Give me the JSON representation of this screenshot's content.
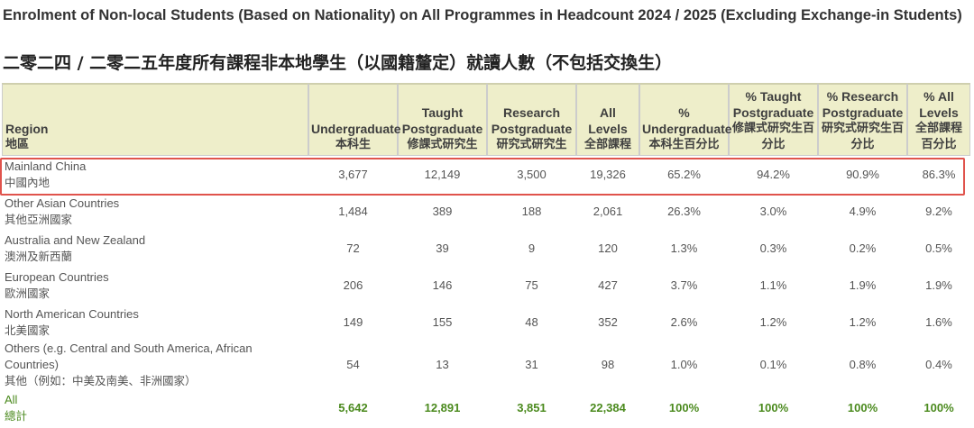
{
  "title_en": "Enrolment of Non-local Students (Based on Nationality) on All Programmes in Headcount 2024 / 2025 (Excluding Exchange-in Students)",
  "title_zh": "二零二四 / 二零二五年度所有課程非本地學生（以國籍釐定）就讀人數（不包括交換生）",
  "columns": [
    {
      "en": "Region",
      "zh": "地區"
    },
    {
      "en": "Undergraduate",
      "zh": "本科生"
    },
    {
      "en": "Taught Postgraduate",
      "zh": "修課式研究生"
    },
    {
      "en": "Research Postgraduate",
      "zh": "研究式研究生"
    },
    {
      "en": "All Levels",
      "zh": "全部課程"
    },
    {
      "en": "% Undergraduate",
      "zh": "本科生百分比"
    },
    {
      "en": "% Taught Postgraduate",
      "zh": "修課式研究生百分比"
    },
    {
      "en": "% Research Postgraduate",
      "zh": "研究式研究生百分比"
    },
    {
      "en": "% All Levels",
      "zh": "全部課程百分比"
    }
  ],
  "rows": [
    {
      "region_en": "Mainland China",
      "region_zh": "中國內地",
      "values": [
        "3,677",
        "12,149",
        "3,500",
        "19,326",
        "65.2%",
        "94.2%",
        "90.9%",
        "86.3%"
      ]
    },
    {
      "region_en": "Other Asian Countries",
      "region_zh": "其他亞洲國家",
      "values": [
        "1,484",
        "389",
        "188",
        "2,061",
        "26.3%",
        "3.0%",
        "4.9%",
        "9.2%"
      ]
    },
    {
      "region_en": "Australia and New Zealand",
      "region_zh": "澳洲及新西蘭",
      "values": [
        "72",
        "39",
        "9",
        "120",
        "1.3%",
        "0.3%",
        "0.2%",
        "0.5%"
      ]
    },
    {
      "region_en": "European Countries",
      "region_zh": "歐洲國家",
      "values": [
        "206",
        "146",
        "75",
        "427",
        "3.7%",
        "1.1%",
        "1.9%",
        "1.9%"
      ]
    },
    {
      "region_en": "North American Countries",
      "region_zh": "北美國家",
      "values": [
        "149",
        "155",
        "48",
        "352",
        "2.6%",
        "1.2%",
        "1.2%",
        "1.6%"
      ]
    },
    {
      "region_en": "Others (e.g. Central and South America, African Countries)",
      "region_zh": "其他（例如：中美及南美、非洲國家）",
      "values": [
        "54",
        "13",
        "31",
        "98",
        "1.0%",
        "0.1%",
        "0.8%",
        "0.4%"
      ]
    },
    {
      "region_en": "All",
      "region_zh": "總計",
      "values": [
        "5,642",
        "12,891",
        "3,851",
        "22,384",
        "100%",
        "100%",
        "100%",
        "100%"
      ]
    }
  ]
}
